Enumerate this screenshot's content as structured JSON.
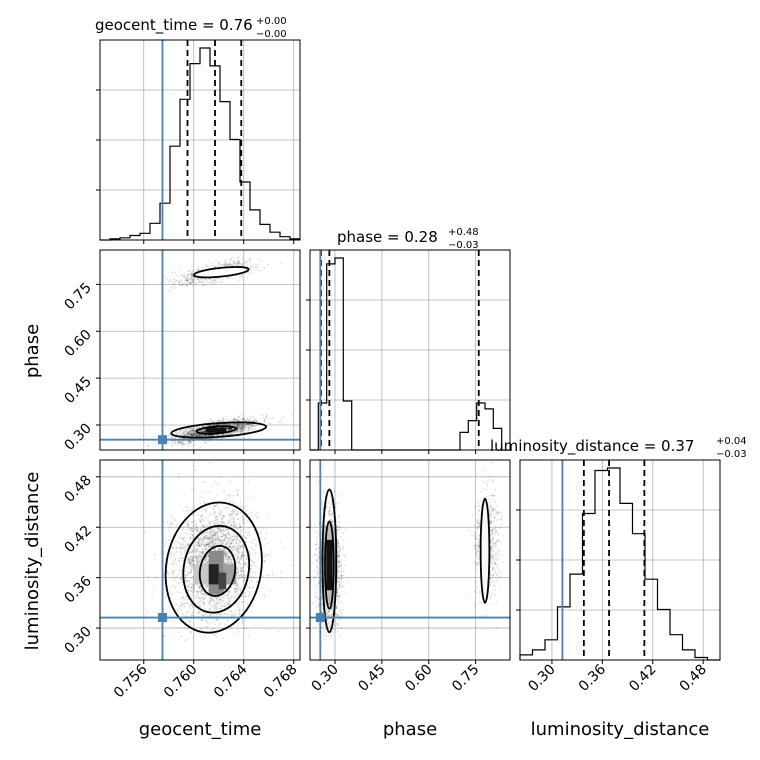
{
  "chart_data": {
    "type": "corner",
    "grid": true,
    "truth_color": "#4682b4",
    "contour_color": "#000000",
    "parameters": [
      {
        "name": "geocent_time",
        "xlabel": "geocent_time",
        "range": [
          0.7525,
          0.7685
        ],
        "ticks": [
          0.756,
          0.76,
          0.764,
          0.768
        ],
        "tick_labels": [
          "0.756",
          "0.760",
          "0.764",
          "0.768"
        ],
        "truth": 0.7575,
        "title": {
          "text": "geocent_time = 0.76",
          "sup": "+0.00",
          "sub": "−0.00"
        },
        "quantiles": [
          0.7595,
          0.7617,
          0.7638
        ],
        "hist_values": [
          0,
          1,
          2,
          4,
          6,
          15,
          33,
          84,
          126,
          158,
          172,
          156,
          124,
          90,
          52,
          27,
          14,
          7,
          3,
          1
        ]
      },
      {
        "name": "phase",
        "ylabel": "phase",
        "xlabel": "phase",
        "range": [
          0.22,
          0.86
        ],
        "ticks": [
          0.3,
          0.45,
          0.6,
          0.75
        ],
        "tick_labels": [
          "0.30",
          "0.45",
          "0.60",
          "0.75"
        ],
        "truth": 0.253,
        "title": {
          "text": "phase = 0.28",
          "sup": "+0.48",
          "sub": "−0.03"
        },
        "quantiles": [
          0.255,
          0.282,
          0.76
        ],
        "hist_values": [
          0,
          48,
          190,
          196,
          50,
          0,
          0,
          0,
          0,
          0,
          0,
          0,
          0,
          0,
          0,
          0,
          0,
          0,
          18,
          30,
          48,
          42,
          22,
          0
        ]
      },
      {
        "name": "luminosity_distance",
        "ylabel": "luminosity_distance",
        "xlabel": "luminosity_distance",
        "range": [
          0.262,
          0.5
        ],
        "ticks": [
          0.3,
          0.36,
          0.42,
          0.48
        ],
        "tick_labels": [
          "0.30",
          "0.36",
          "0.42",
          "0.48"
        ],
        "truth": 0.3125,
        "title": {
          "text": "luminosity_distance = 0.37",
          "sup": "+0.04",
          "sub": "−0.03"
        },
        "quantiles": [
          0.338,
          0.368,
          0.41
        ],
        "hist_values": [
          2,
          4,
          8,
          21,
          34,
          58,
          75,
          76,
          62,
          50,
          32,
          20,
          10,
          4,
          1,
          0
        ]
      }
    ],
    "phase_y_ticks": [
      0.3,
      0.45,
      0.6,
      0.75
    ],
    "lum_y_ticks": [
      0.3,
      0.36,
      0.42,
      0.48
    ]
  }
}
